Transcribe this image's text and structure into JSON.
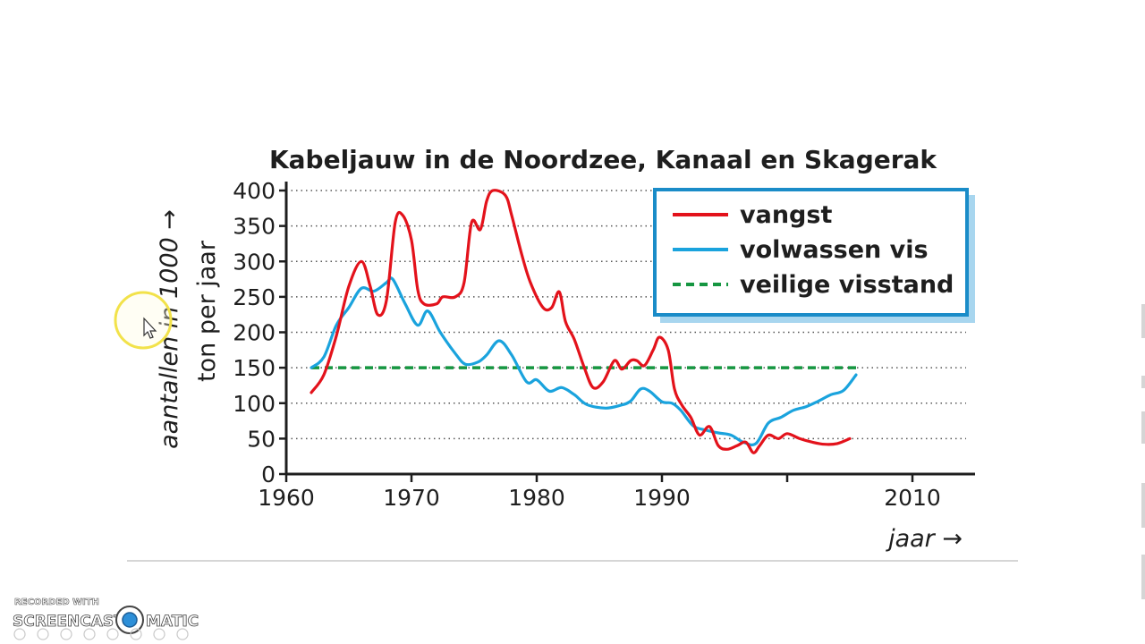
{
  "chart_data": {
    "type": "line",
    "title": "Kabeljauw in de Noordzee, Kanaal en Skagerak",
    "ylabel_line1": "aantallen in 1000 →",
    "ylabel_line2": "ton per jaar",
    "xlabel": "jaar →",
    "xlim": [
      1960,
      2015
    ],
    "ylim": [
      0,
      400
    ],
    "x_ticks": [
      1960,
      1970,
      1980,
      1990,
      2010
    ],
    "y_ticks": [
      0,
      50,
      100,
      150,
      200,
      250,
      300,
      350,
      400
    ],
    "gridlines": "horizontal dotted",
    "legend_position": "top-right",
    "series": [
      {
        "name": "vangst",
        "color": "#e3121b",
        "style": "solid",
        "points": [
          [
            1962.0,
            115
          ],
          [
            1963.0,
            140
          ],
          [
            1964.0,
            195
          ],
          [
            1965.0,
            265
          ],
          [
            1966.0,
            300
          ],
          [
            1966.7,
            265
          ],
          [
            1967.3,
            225
          ],
          [
            1968.0,
            245
          ],
          [
            1968.7,
            355
          ],
          [
            1969.3,
            365
          ],
          [
            1970.0,
            330
          ],
          [
            1970.5,
            260
          ],
          [
            1971.0,
            240
          ],
          [
            1972.0,
            240
          ],
          [
            1972.5,
            250
          ],
          [
            1973.5,
            250
          ],
          [
            1974.2,
            270
          ],
          [
            1974.8,
            355
          ],
          [
            1975.5,
            345
          ],
          [
            1976.0,
            385
          ],
          [
            1976.5,
            400
          ],
          [
            1977.5,
            393
          ],
          [
            1978.0,
            365
          ],
          [
            1978.8,
            310
          ],
          [
            1979.5,
            270
          ],
          [
            1980.5,
            235
          ],
          [
            1981.2,
            235
          ],
          [
            1981.8,
            257
          ],
          [
            1982.3,
            215
          ],
          [
            1983.0,
            190
          ],
          [
            1983.8,
            150
          ],
          [
            1984.5,
            122
          ],
          [
            1985.3,
            130
          ],
          [
            1986.2,
            160
          ],
          [
            1986.8,
            148
          ],
          [
            1987.5,
            160
          ],
          [
            1988.0,
            160
          ],
          [
            1988.6,
            153
          ],
          [
            1989.3,
            175
          ],
          [
            1989.8,
            193
          ],
          [
            1990.5,
            175
          ],
          [
            1991.0,
            120
          ],
          [
            1991.6,
            97
          ],
          [
            1992.3,
            80
          ],
          [
            1993.0,
            55
          ],
          [
            1993.8,
            67
          ],
          [
            1994.5,
            40
          ],
          [
            1995.2,
            35
          ],
          [
            1996.0,
            40
          ],
          [
            1996.7,
            45
          ],
          [
            1997.3,
            30
          ],
          [
            1997.8,
            40
          ],
          [
            1998.5,
            55
          ],
          [
            1999.3,
            50
          ],
          [
            2000.0,
            57
          ],
          [
            2001.0,
            50
          ],
          [
            2002.0,
            45
          ],
          [
            2003.0,
            42
          ],
          [
            2004.0,
            43
          ],
          [
            2005.0,
            50
          ]
        ]
      },
      {
        "name": "volwassen vis",
        "color": "#1aa3dd",
        "style": "solid",
        "points": [
          [
            1962.0,
            150
          ],
          [
            1963.0,
            165
          ],
          [
            1964.0,
            210
          ],
          [
            1965.0,
            235
          ],
          [
            1966.0,
            262
          ],
          [
            1967.0,
            258
          ],
          [
            1968.0,
            270
          ],
          [
            1968.5,
            275
          ],
          [
            1969.5,
            240
          ],
          [
            1970.5,
            210
          ],
          [
            1971.3,
            230
          ],
          [
            1972.3,
            200
          ],
          [
            1973.5,
            170
          ],
          [
            1974.3,
            155
          ],
          [
            1975.3,
            158
          ],
          [
            1976.0,
            168
          ],
          [
            1977.0,
            188
          ],
          [
            1978.0,
            168
          ],
          [
            1979.2,
            130
          ],
          [
            1980.0,
            133
          ],
          [
            1981.0,
            117
          ],
          [
            1982.0,
            122
          ],
          [
            1983.0,
            112
          ],
          [
            1984.0,
            98
          ],
          [
            1985.5,
            93
          ],
          [
            1986.7,
            97
          ],
          [
            1987.5,
            103
          ],
          [
            1988.3,
            120
          ],
          [
            1989.0,
            117
          ],
          [
            1990.0,
            102
          ],
          [
            1990.8,
            100
          ],
          [
            1991.5,
            90
          ],
          [
            1992.5,
            68
          ],
          [
            1993.5,
            62
          ],
          [
            1994.5,
            58
          ],
          [
            1995.5,
            55
          ],
          [
            1996.5,
            45
          ],
          [
            1997.5,
            43
          ],
          [
            1998.5,
            72
          ],
          [
            1999.5,
            80
          ],
          [
            2000.5,
            90
          ],
          [
            2001.5,
            95
          ],
          [
            2002.5,
            103
          ],
          [
            2003.5,
            112
          ],
          [
            2004.5,
            118
          ],
          [
            2005.5,
            140
          ]
        ]
      },
      {
        "name": "veilige visstand",
        "color": "#169641",
        "style": "dashed",
        "points": [
          [
            1962.0,
            150
          ],
          [
            2005.8,
            150
          ]
        ]
      }
    ]
  },
  "watermark": {
    "line1": "RECORDED WITH",
    "line2_left": "SCREENCAST",
    "line2_right": "MATIC"
  }
}
